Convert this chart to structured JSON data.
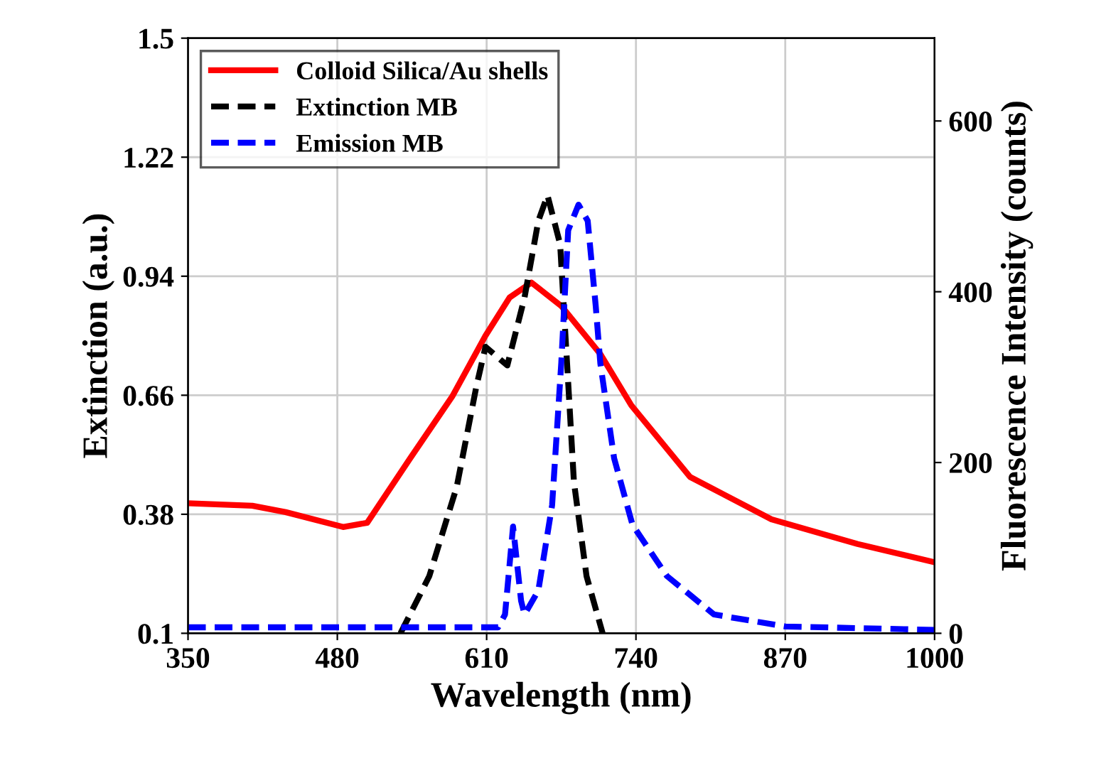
{
  "chart_data": {
    "type": "line",
    "xlabel": "Wavelength (nm)",
    "ylabel": "Extinction (a.u.)",
    "y2label": "Fluorescence Intensity (counts)",
    "xlim": [
      350,
      1000
    ],
    "xticks": [
      350,
      480,
      610,
      740,
      870,
      1000
    ],
    "ylim": [
      0.1,
      1.5
    ],
    "yticks": [
      0.1,
      0.38,
      0.66,
      0.94,
      1.22,
      1.5
    ],
    "y2lim": [
      0,
      697
    ],
    "y2ticks": [
      0,
      200,
      400,
      600
    ],
    "grid": true,
    "legend": "top left",
    "marker": "none",
    "series": [
      {
        "name": "Colloid Silica/Au shells",
        "color": "#ff0000",
        "line_style": "solid",
        "x": [
          350,
          406,
          435,
          485,
          506,
          543,
          580,
          609,
          630,
          649,
          675,
          709,
          736,
          787,
          858,
          933,
          1000
        ],
        "values": [
          0.406,
          0.4,
          0.385,
          0.35,
          0.36,
          0.51,
          0.657,
          0.8,
          0.89,
          0.925,
          0.87,
          0.757,
          0.636,
          0.468,
          0.368,
          0.31,
          0.267
        ]
      },
      {
        "name": "Extinction MB",
        "color": "#000000",
        "line_style": "dashed",
        "x": [
          535,
          560,
          584,
          601,
          609,
          628,
          643,
          655,
          663,
          674,
          680,
          686,
          697,
          711
        ],
        "values": [
          0.1,
          0.234,
          0.445,
          0.68,
          0.774,
          0.73,
          0.89,
          1.07,
          1.13,
          1.015,
          0.736,
          0.456,
          0.234,
          0.1
        ]
      },
      {
        "name": "Emission MB",
        "color": "#0000ff",
        "line_style": "dashed",
        "axis": "y2",
        "x": [
          350,
          500,
          620,
          626,
          633,
          640,
          643,
          655,
          667,
          675,
          681,
          690,
          698,
          705,
          709,
          721,
          737,
          767,
          808,
          870,
          1000
        ],
        "values": [
          7,
          7,
          7,
          22,
          125,
          38,
          22,
          50,
          150,
          317,
          472,
          502,
          483,
          383,
          316,
          205,
          127,
          67,
          22,
          8,
          4
        ]
      }
    ]
  }
}
